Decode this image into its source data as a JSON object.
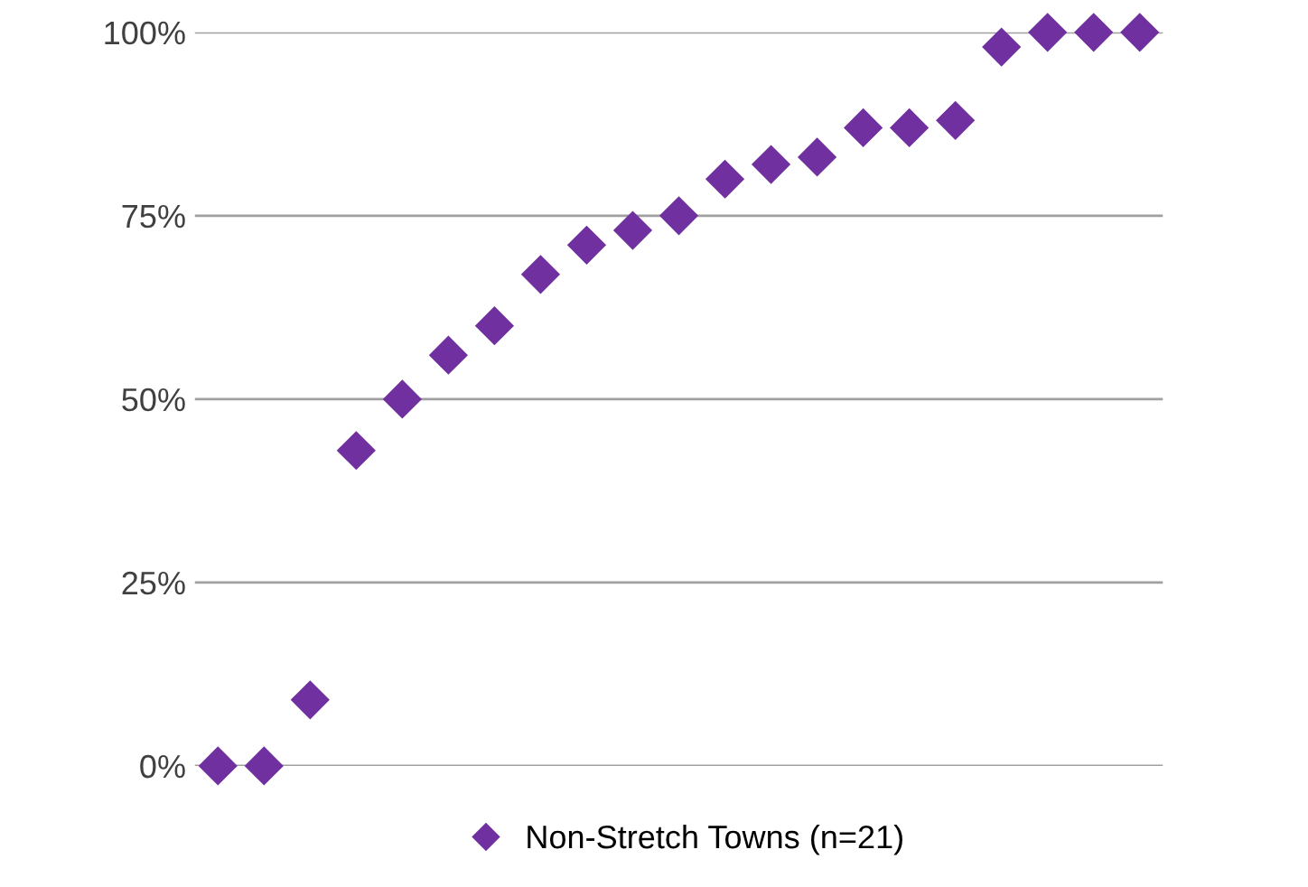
{
  "chart_data": {
    "type": "scatter",
    "categories": [
      null,
      null,
      null,
      null,
      null,
      null,
      null,
      null,
      null,
      null,
      null,
      null,
      null,
      null,
      null,
      null,
      null,
      null,
      null,
      null,
      null
    ],
    "series": [
      {
        "name": "Non-Stretch Towns (n=21)",
        "color": "#7030a0",
        "values": [
          0,
          0,
          9,
          43,
          50,
          56,
          60,
          67,
          71,
          73,
          75,
          80,
          82,
          83,
          87,
          87,
          88,
          98,
          100,
          100,
          100
        ]
      }
    ],
    "ylim": [
      0,
      100
    ],
    "yticks": [
      {
        "value": 0,
        "label": "0%"
      },
      {
        "value": 25,
        "label": "25%"
      },
      {
        "value": 50,
        "label": "50%"
      },
      {
        "value": 75,
        "label": "75%"
      },
      {
        "value": 100,
        "label": "100%"
      }
    ],
    "grid": "y",
    "legend": "bottom",
    "marker": "diamond"
  }
}
